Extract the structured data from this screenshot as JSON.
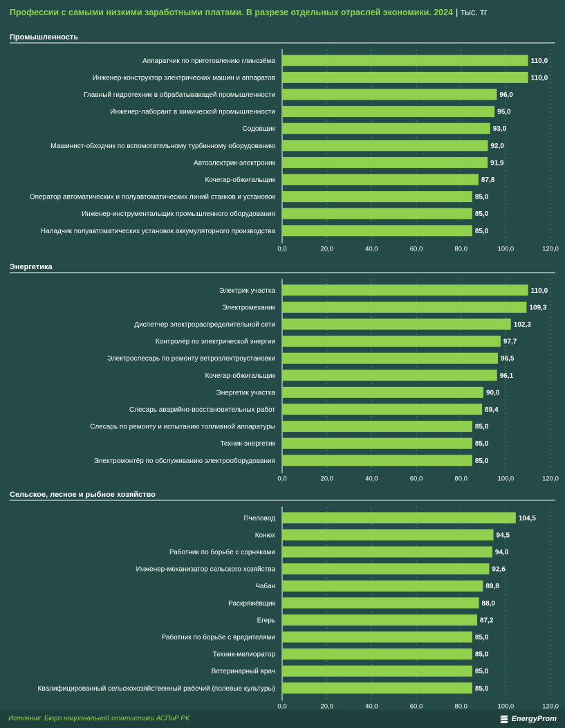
{
  "header": {
    "title": "Профессии с самыми низкими заработными платами. В разрезе отдельных отраслей экономики. 2024",
    "unit": "тыс. тг"
  },
  "colors": {
    "background": "#244b47",
    "bar": "#8fd14f",
    "accent_text": "#8fd14f",
    "text": "#ffffff"
  },
  "chart_data": [
    {
      "type": "bar",
      "orientation": "horizontal",
      "title": "Промышленность",
      "categories": [
        "Аппаратчик по приготовлению глинозёма",
        "Инженер-конструктор электрических машин и аппаратов",
        "Главный гидротехник в обрабатывающей промышленности",
        "Инженер-лаборант в химической промышленности",
        "Содовщик",
        "Машинист-обходчик по вспомогательному турбинному оборудованию",
        "Автоэлектрик-электроник",
        "Кочегар-обжигальщик",
        "Оператор автоматических и полуавтоматических линий станков и установок",
        "Инженер-инструментальщик промышленного оборудования",
        "Наладчик полуавтоматических установок аккумуляторного производства"
      ],
      "values": [
        110.0,
        110.0,
        96.0,
        95.0,
        93.0,
        92.0,
        91.9,
        87.8,
        85.0,
        85.0,
        85.0
      ],
      "value_labels": [
        "110,0",
        "110,0",
        "96,0",
        "95,0",
        "93,0",
        "92,0",
        "91,9",
        "87,8",
        "85,0",
        "85,0",
        "85,0"
      ],
      "xlim": [
        0,
        120
      ],
      "xticks": [
        0,
        20,
        40,
        60,
        80,
        100,
        120
      ],
      "xtick_labels": [
        "0,0",
        "20,0",
        "40,0",
        "60,0",
        "80,0",
        "100,0",
        "120,0"
      ],
      "grid": "vertical dashed"
    },
    {
      "type": "bar",
      "orientation": "horizontal",
      "title": "Энергетика",
      "categories": [
        "Электрик участка",
        "Электромеханик",
        "Диспетчер электрораспределительной сети",
        "Контролёр по электрической энергии",
        "Электрослесарь по ремонту ветроэлектроустановки",
        "Кочегар-обжигальщик",
        "Энергетик участка",
        "Слесарь аварийно-восстановительных работ",
        "Слесарь по ремонту и испытанию топливной аппаратуры",
        "Техник-энергетик",
        "Электромонтёр по обслуживанию электрооборудования"
      ],
      "values": [
        110.0,
        109.3,
        102.3,
        97.7,
        96.5,
        96.1,
        90.0,
        89.4,
        85.0,
        85.0,
        85.0
      ],
      "value_labels": [
        "110,0",
        "109,3",
        "102,3",
        "97,7",
        "96,5",
        "96,1",
        "90,0",
        "89,4",
        "85,0",
        "85,0",
        "85,0"
      ],
      "xlim": [
        0,
        120
      ],
      "xticks": [
        0,
        20,
        40,
        60,
        80,
        100,
        120
      ],
      "xtick_labels": [
        "0,0",
        "20,0",
        "40,0",
        "60,0",
        "80,0",
        "100,0",
        "120,0"
      ],
      "grid": "vertical dashed"
    },
    {
      "type": "bar",
      "orientation": "horizontal",
      "title": "Сельское, лесное и рыбное хозяйство",
      "categories": [
        "Пчеловод",
        "Конюх",
        "Работник по борьбе с сорняками",
        "Инженер-механизатор сельского хозяйства",
        "Чабан",
        "Раскряжёвщик",
        "Егерь",
        "Работник по борьбе с вредителями",
        "Техник-мелиоратор",
        "Ветеринарный врач",
        "Квалифицированный сельскохозяйственный рабочий (полевые культуры)"
      ],
      "values": [
        104.5,
        94.5,
        94.0,
        92.6,
        89.8,
        88.0,
        87.2,
        85.0,
        85.0,
        85.0,
        85.0
      ],
      "value_labels": [
        "104,5",
        "94,5",
        "94,0",
        "92,6",
        "89,8",
        "88,0",
        "87,2",
        "85,0",
        "85,0",
        "85,0",
        "85,0"
      ],
      "xlim": [
        0,
        120
      ],
      "xticks": [
        0,
        20,
        40,
        60,
        80,
        100,
        120
      ],
      "xtick_labels": [
        "0,0",
        "20,0",
        "40,0",
        "60,0",
        "80,0",
        "100,0",
        "120,0"
      ],
      "grid": "vertical dashed"
    }
  ],
  "footer": {
    "source": "Источник: Бюро национальной статистики АСПиР РК",
    "logo_text": "EnergyProm",
    "logo_icon": "energyprom-logo-icon"
  }
}
